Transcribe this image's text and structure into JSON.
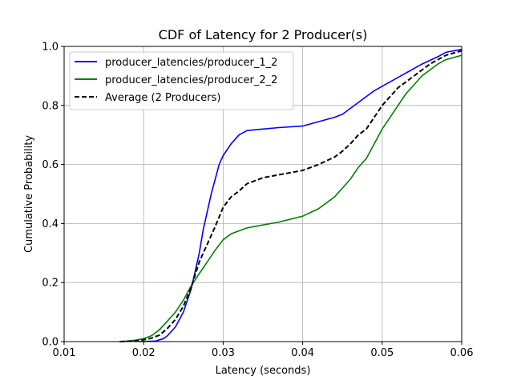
{
  "chart_data": {
    "type": "line",
    "title": "CDF of Latency for 2 Producer(s)",
    "xlabel": "Latency (seconds)",
    "ylabel": "Cumulative Probability",
    "xlim": [
      0.01,
      0.06
    ],
    "ylim": [
      0.0,
      1.0
    ],
    "xticks": [
      "0.01",
      "0.02",
      "0.03",
      "0.04",
      "0.05",
      "0.06"
    ],
    "yticks": [
      "0.0",
      "0.2",
      "0.4",
      "0.6",
      "0.8",
      "1.0"
    ],
    "grid": true,
    "legend_position": "top-left",
    "series": [
      {
        "name": "producer_latencies/producer_1_2",
        "color": "#0000ff",
        "style": "solid",
        "x": [
          0.0195,
          0.0215,
          0.0225,
          0.023,
          0.024,
          0.025,
          0.026,
          0.027,
          0.0275,
          0.028,
          0.0285,
          0.029,
          0.0295,
          0.03,
          0.031,
          0.032,
          0.033,
          0.035,
          0.037,
          0.04,
          0.042,
          0.044,
          0.045,
          0.047,
          0.049,
          0.051,
          0.053,
          0.055,
          0.057,
          0.058,
          0.06
        ],
        "y": [
          0.0,
          0.002,
          0.01,
          0.02,
          0.05,
          0.1,
          0.18,
          0.3,
          0.38,
          0.44,
          0.5,
          0.55,
          0.6,
          0.63,
          0.67,
          0.7,
          0.715,
          0.72,
          0.725,
          0.73,
          0.745,
          0.76,
          0.77,
          0.81,
          0.85,
          0.88,
          0.91,
          0.94,
          0.965,
          0.98,
          0.99
        ]
      },
      {
        "name": "producer_latencies/producer_2_2",
        "color": "#008000",
        "style": "solid",
        "x": [
          0.017,
          0.018,
          0.019,
          0.02,
          0.021,
          0.022,
          0.023,
          0.024,
          0.025,
          0.026,
          0.027,
          0.028,
          0.029,
          0.03,
          0.031,
          0.033,
          0.035,
          0.037,
          0.04,
          0.042,
          0.044,
          0.045,
          0.046,
          0.047,
          0.048,
          0.049,
          0.05,
          0.051,
          0.052,
          0.053,
          0.054,
          0.055,
          0.056,
          0.057,
          0.058,
          0.06
        ],
        "y": [
          0.0,
          0.002,
          0.005,
          0.01,
          0.02,
          0.04,
          0.07,
          0.1,
          0.14,
          0.19,
          0.23,
          0.27,
          0.31,
          0.345,
          0.365,
          0.385,
          0.395,
          0.405,
          0.425,
          0.45,
          0.49,
          0.52,
          0.55,
          0.59,
          0.62,
          0.67,
          0.72,
          0.76,
          0.8,
          0.84,
          0.87,
          0.9,
          0.92,
          0.94,
          0.955,
          0.97
        ]
      },
      {
        "name": "Average (2 Producers)",
        "color": "#000000",
        "style": "dashed",
        "x": [
          0.017,
          0.018,
          0.019,
          0.02,
          0.021,
          0.022,
          0.023,
          0.024,
          0.025,
          0.026,
          0.027,
          0.028,
          0.029,
          0.03,
          0.031,
          0.032,
          0.033,
          0.035,
          0.037,
          0.04,
          0.042,
          0.044,
          0.045,
          0.046,
          0.047,
          0.048,
          0.049,
          0.05,
          0.051,
          0.052,
          0.053,
          0.054,
          0.055,
          0.056,
          0.057,
          0.058,
          0.06
        ],
        "y": [
          0.0,
          0.001,
          0.003,
          0.006,
          0.012,
          0.022,
          0.045,
          0.075,
          0.12,
          0.185,
          0.27,
          0.33,
          0.39,
          0.455,
          0.49,
          0.51,
          0.535,
          0.555,
          0.565,
          0.58,
          0.6,
          0.625,
          0.645,
          0.67,
          0.7,
          0.72,
          0.76,
          0.8,
          0.83,
          0.86,
          0.88,
          0.9,
          0.92,
          0.94,
          0.955,
          0.97,
          0.985
        ]
      }
    ]
  }
}
